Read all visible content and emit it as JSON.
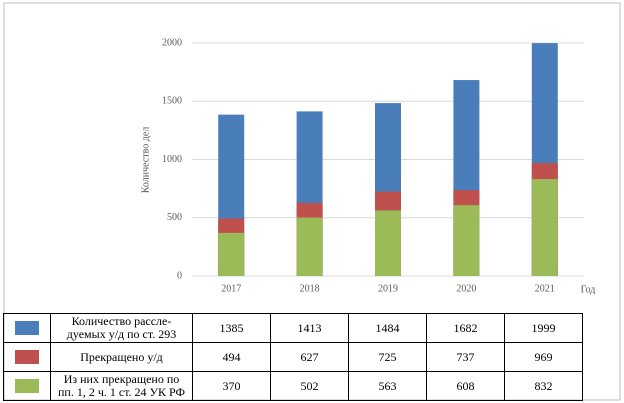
{
  "chart_data": {
    "type": "bar",
    "overlap": true,
    "y_label": "Количество дел",
    "x_label": "Год",
    "categories": [
      "2017",
      "2018",
      "2019",
      "2020",
      "2021"
    ],
    "series": [
      {
        "name": "Количество рассле-\nдуемых у/д по ст. 293",
        "color": "#4a7ebb",
        "values": [
          1385,
          1413,
          1484,
          1682,
          1999
        ]
      },
      {
        "name": "Прекращено у/д",
        "color": "#c0504d",
        "values": [
          494,
          627,
          725,
          737,
          969
        ]
      },
      {
        "name": "Из них прекращено по\nпп. 1, 2 ч. 1 ст. 24 УК РФ",
        "color": "#9bbb59",
        "values": [
          370,
          502,
          563,
          608,
          832
        ]
      }
    ],
    "ylim": [
      0,
      2000
    ],
    "yticks": [
      0,
      500,
      1000,
      1500,
      2000
    ],
    "grid": true
  }
}
